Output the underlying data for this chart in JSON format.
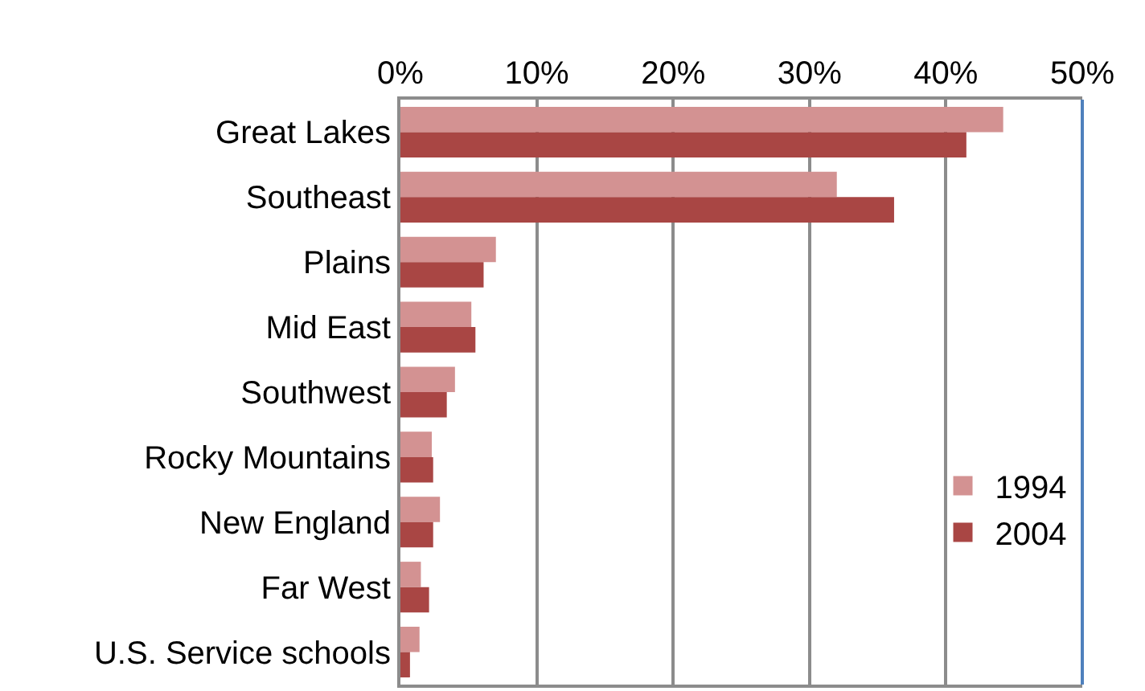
{
  "chart_data": {
    "type": "bar",
    "orientation": "horizontal",
    "categories": [
      "Great Lakes",
      "Southeast",
      "Plains",
      "Mid East",
      "Southwest",
      "Rocky Mountains",
      "New England",
      "Far West",
      "U.S. Service schools"
    ],
    "series": [
      {
        "name": "1994",
        "color": "#d39292",
        "values": [
          44.2,
          32.0,
          7.0,
          5.2,
          4.0,
          2.3,
          2.9,
          1.5,
          1.4
        ]
      },
      {
        "name": "2004",
        "color": "#a94644",
        "values": [
          41.5,
          36.2,
          6.1,
          5.5,
          3.4,
          2.4,
          2.4,
          2.1,
          0.7
        ]
      }
    ],
    "xlim": [
      0,
      50
    ],
    "xticks": [
      {
        "value": 0,
        "label": "0%"
      },
      {
        "value": 10,
        "label": "10%"
      },
      {
        "value": 20,
        "label": "20%"
      },
      {
        "value": 30,
        "label": "30%"
      },
      {
        "value": 40,
        "label": "40%"
      },
      {
        "value": 50,
        "label": "50%"
      }
    ],
    "grid": "x",
    "legend": "right"
  }
}
